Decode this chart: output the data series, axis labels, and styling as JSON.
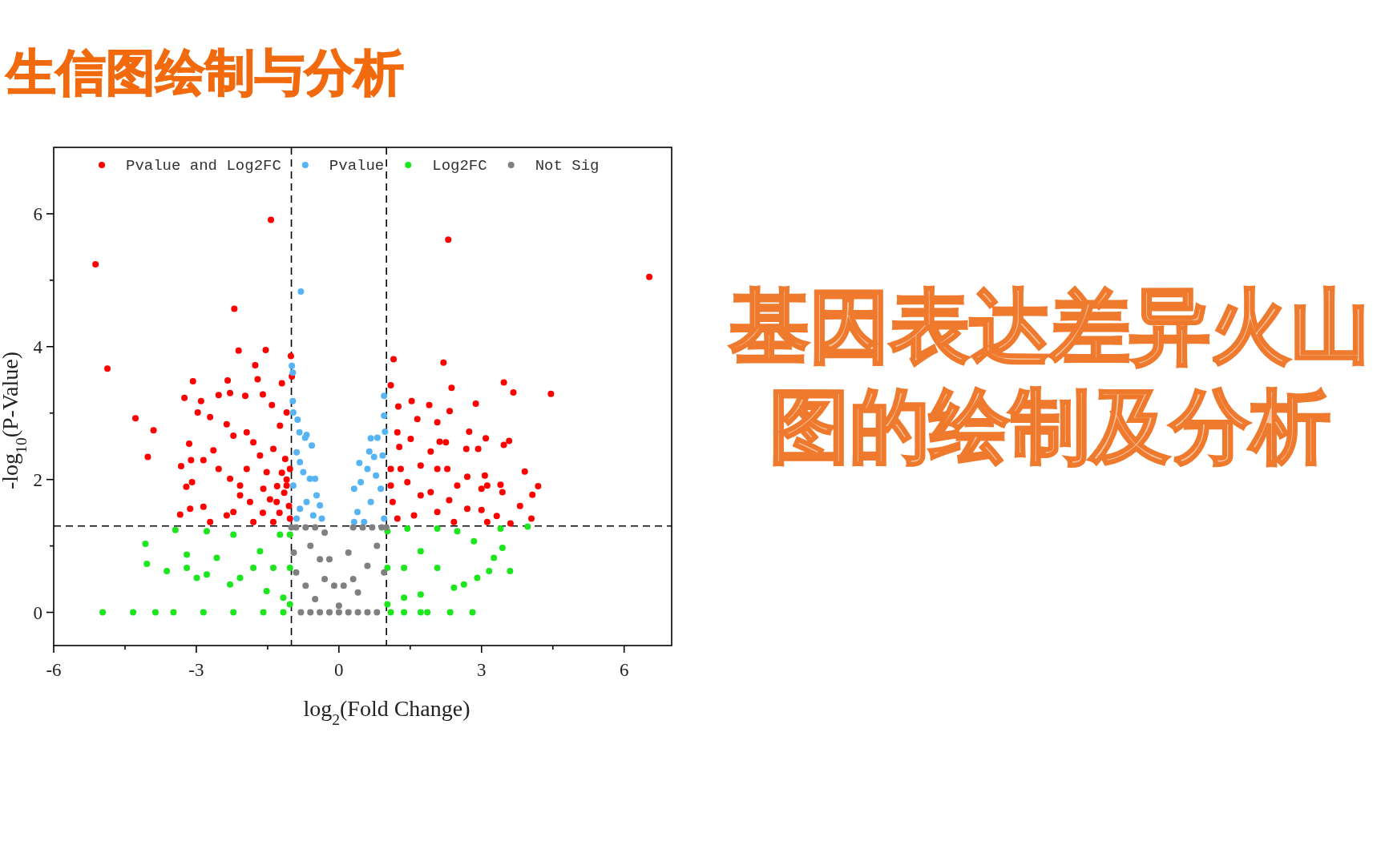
{
  "chart_data": {
    "type": "scatter",
    "title": "生信图绘制与分析",
    "xlabel": "log$_{2}$(Fold Change)",
    "ylabel": "-log$_{10}$(P-Value)",
    "xlim": [
      -6,
      7
    ],
    "ylim": [
      -0.5,
      7
    ],
    "xticks": [
      -6,
      {
        "value": -4.5,
        "label": null
      },
      -3,
      {
        "value": -1.5,
        "label": null
      },
      0,
      {
        "value": 1.5,
        "label": null
      },
      3,
      {
        "value": 4.5,
        "label": null
      },
      6
    ],
    "yticks": [
      0,
      {
        "value": 1,
        "label": null
      },
      2,
      {
        "value": 3,
        "label": null
      },
      4,
      {
        "value": 5,
        "label": null
      },
      6
    ],
    "grid": false,
    "legend": "top",
    "marker": "circle",
    "ref_lines": [
      {
        "axis": "x",
        "value": -1,
        "line_style": "dashed",
        "color": "#000000"
      },
      {
        "axis": "x",
        "value": 1,
        "line_style": "dashed",
        "color": "#000000"
      },
      {
        "axis": "y",
        "value": 1.3,
        "line_style": "dashed",
        "color": "#000000"
      }
    ],
    "annotations": [
      "基因表达差异火山图的绘制及分析"
    ],
    "series": [
      {
        "name": "Pvalue and Log2FC",
        "color": "#ff0000",
        "x": [
          -5.12,
          -1.43,
          -4.87,
          -4.28,
          -3.9,
          -4.02,
          -2.2,
          -2.11,
          -1.54,
          -1.76,
          -1.01,
          -0.99,
          -3.07,
          -3.25,
          -2.9,
          -2.34,
          -2.29,
          -2.53,
          -1.97,
          -1.71,
          -1.6,
          -1.41,
          -1.2,
          -1.1,
          -2.97,
          -2.71,
          -3.15,
          -3.32,
          -3.11,
          -3.21,
          -3.09,
          -3.34,
          -3.13,
          -2.85,
          -2.71,
          -2.85,
          -2.64,
          -2.36,
          -2.22,
          -1.94,
          -1.8,
          -2.53,
          -2.29,
          -2.08,
          -1.94,
          -1.66,
          -1.52,
          -1.38,
          -1.24,
          -1.13,
          -1.59,
          -1.31,
          -1.1,
          -2.22,
          -1.87,
          -2.36,
          -1.03,
          -1.38,
          -1.8,
          -2.08,
          -1.03,
          -1.05,
          -1.15,
          -1.25,
          -1.1,
          -1.3,
          -1.45,
          -1.6,
          -1.2,
          2.3,
          6.53,
          1.15,
          2.2,
          3.47,
          3.67,
          4.46,
          2.37,
          1.09,
          1.53,
          1.9,
          2.88,
          2.33,
          1.25,
          1.65,
          2.07,
          2.74,
          3.09,
          3.58,
          3.47,
          2.93,
          2.68,
          2.25,
          2.12,
          1.93,
          1.51,
          1.23,
          1.27,
          3.91,
          4.19,
          4.07,
          3.81,
          4.05,
          3.4,
          3.44,
          3.07,
          3.12,
          3.0,
          2.7,
          2.49,
          2.28,
          2.07,
          1.72,
          1.3,
          1.44,
          1.93,
          2.32,
          2.7,
          3.0,
          3.32,
          3.61,
          3.12,
          2.42,
          2.07,
          1.72,
          1.13,
          1.09,
          1.23,
          1.58,
          1.09
        ],
        "values": [
          5.24,
          5.91,
          3.67,
          2.92,
          2.74,
          2.34,
          4.57,
          3.94,
          3.95,
          3.72,
          3.86,
          3.55,
          3.48,
          3.23,
          3.18,
          3.49,
          3.3,
          3.27,
          3.26,
          3.51,
          3.28,
          3.12,
          3.45,
          3.01,
          3.01,
          2.94,
          2.54,
          2.2,
          2.29,
          1.89,
          1.96,
          1.47,
          1.56,
          1.59,
          1.36,
          2.29,
          2.44,
          2.83,
          2.66,
          2.71,
          2.56,
          2.16,
          2.01,
          1.91,
          2.16,
          2.36,
          2.11,
          2.46,
          2.81,
          2.31,
          1.86,
          1.66,
          1.91,
          1.51,
          1.66,
          1.46,
          1.41,
          1.36,
          1.36,
          1.76,
          2.16,
          1.6,
          1.8,
          1.5,
          2.0,
          1.9,
          1.7,
          1.5,
          2.1,
          5.61,
          5.05,
          3.81,
          3.76,
          3.46,
          3.31,
          3.29,
          3.38,
          3.42,
          3.18,
          3.12,
          3.14,
          3.03,
          3.1,
          2.91,
          2.86,
          2.72,
          2.62,
          2.58,
          2.52,
          2.46,
          2.46,
          2.56,
          2.57,
          2.42,
          2.61,
          2.71,
          2.49,
          2.12,
          1.9,
          1.77,
          1.6,
          1.41,
          1.92,
          1.81,
          2.06,
          1.91,
          1.86,
          2.04,
          1.91,
          2.16,
          2.16,
          2.21,
          2.16,
          1.96,
          1.81,
          1.69,
          1.56,
          1.54,
          1.45,
          1.34,
          1.36,
          1.36,
          1.51,
          1.76,
          1.66,
          1.91,
          1.41,
          1.46,
          2.16
        ]
      },
      {
        "name": "Pvalue",
        "color": "#56b4f5",
        "x": [
          -0.8,
          -0.99,
          -0.97,
          -0.97,
          -0.96,
          -0.87,
          -0.83,
          -0.71,
          -0.68,
          -0.57,
          -0.89,
          -0.82,
          -0.75,
          -0.61,
          -0.5,
          -0.47,
          -0.4,
          -0.36,
          -0.68,
          -0.89,
          -0.96,
          -0.82,
          -0.54,
          0.95,
          0.95,
          0.97,
          0.67,
          0.81,
          0.92,
          0.64,
          0.74,
          0.43,
          0.6,
          0.46,
          0.32,
          0.78,
          0.88,
          0.39,
          0.32,
          0.67,
          0.95,
          0.53
        ],
        "values": [
          4.83,
          3.71,
          3.61,
          3.18,
          3.01,
          2.9,
          2.71,
          2.63,
          2.67,
          2.51,
          2.41,
          2.26,
          2.11,
          2.01,
          2.01,
          1.76,
          1.61,
          1.41,
          1.66,
          1.41,
          1.91,
          1.56,
          1.46,
          3.26,
          2.96,
          2.72,
          2.62,
          2.63,
          2.36,
          2.42,
          2.34,
          2.25,
          2.16,
          1.96,
          1.86,
          2.06,
          1.86,
          1.51,
          1.36,
          1.66,
          1.41,
          1.36
        ]
      },
      {
        "name": "Log2FC",
        "color": "#1ee61e",
        "x": [
          -4.97,
          -4.33,
          -3.86,
          -3.48,
          -2.85,
          -2.22,
          -1.59,
          -1.17,
          -4.07,
          -4.04,
          -3.62,
          -3.44,
          -3.2,
          -2.99,
          -2.78,
          -2.57,
          -2.22,
          -2.08,
          -1.66,
          -1.52,
          -1.17,
          -1.03,
          -1.24,
          -1.8,
          -2.29,
          -2.78,
          -3.2,
          -1.03,
          -1.03,
          -1.38,
          3.97,
          3.6,
          3.44,
          3.4,
          3.26,
          3.16,
          2.91,
          2.63,
          2.42,
          2.84,
          2.49,
          2.07,
          1.72,
          2.07,
          1.72,
          1.37,
          1.02,
          1.02,
          1.02,
          1.44,
          1.37,
          1.09,
          1.37,
          1.72,
          1.86,
          2.34,
          2.81
        ],
        "values": [
          0,
          0,
          0,
          0,
          0,
          0,
          0,
          0,
          1.03,
          0.73,
          0.62,
          1.24,
          0.87,
          0.52,
          1.22,
          0.82,
          1.17,
          0.52,
          0.92,
          0.32,
          0.22,
          0.12,
          1.17,
          0.67,
          0.42,
          0.57,
          0.67,
          0.67,
          1.17,
          0.67,
          1.29,
          0.62,
          0.97,
          1.26,
          0.82,
          0.62,
          0.52,
          0.42,
          0.37,
          1.07,
          1.22,
          1.26,
          0.92,
          0.67,
          0.27,
          0.22,
          0.12,
          0.67,
          1.22,
          1.26,
          0.67,
          0,
          0,
          0,
          0,
          0,
          0
        ]
      },
      {
        "name": "Not Sig",
        "color": "#808080",
        "x": [
          -1.0,
          -0.9,
          -0.7,
          -0.5,
          -0.3,
          -0.2,
          -0.1,
          0,
          0.1,
          0.2,
          0.3,
          0.5,
          0.7,
          0.9,
          1.0,
          -0.9,
          -0.7,
          -0.5,
          -0.8,
          -0.6,
          -0.4,
          -0.2,
          0,
          0.2,
          0.4,
          0.6,
          0.8,
          0.95,
          0.6,
          0.4,
          -0.4,
          -0.6,
          -0.95,
          0.8,
          -0.3,
          0.3
        ],
        "values": [
          1.28,
          1.28,
          1.28,
          1.28,
          1.2,
          0.8,
          0.4,
          0.1,
          0.4,
          0.9,
          1.28,
          1.28,
          1.28,
          1.28,
          1.28,
          0.6,
          0.4,
          0.2,
          0,
          0,
          0,
          0,
          0,
          0,
          0,
          0,
          0,
          0.6,
          0.7,
          0.3,
          0.8,
          1.0,
          0.9,
          1.0,
          0.5,
          0.5
        ]
      }
    ]
  }
}
